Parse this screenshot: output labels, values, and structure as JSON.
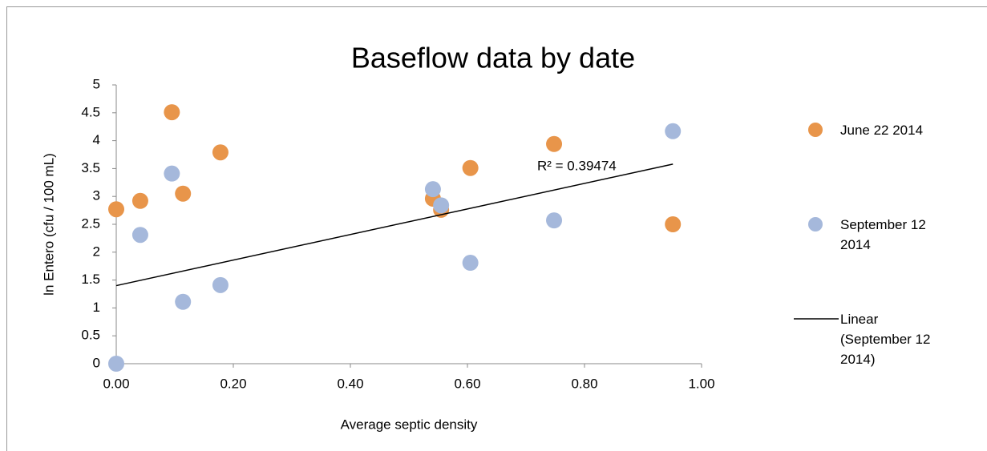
{
  "chart_data": {
    "type": "scatter",
    "title": "Baseflow data by date",
    "x_label": "Average septic density",
    "y_label": "ln Entero (cfu / 100 mL)",
    "xlim": [
      0,
      1
    ],
    "ylim": [
      0,
      5
    ],
    "xticks": [
      {
        "value": 0,
        "label": "0.00"
      },
      {
        "value": 0.2,
        "label": "0.20"
      },
      {
        "value": 0.4,
        "label": "0.40"
      },
      {
        "value": 0.6,
        "label": "0.60"
      },
      {
        "value": 0.8,
        "label": "0.80"
      },
      {
        "value": 1,
        "label": "1.00"
      }
    ],
    "yticks": [
      0,
      0.5,
      1,
      1.5,
      2,
      2.5,
      3,
      3.5,
      4,
      4.5,
      5
    ],
    "grid": false,
    "series": [
      {
        "name": "June 22 2014",
        "color": "#e8954a",
        "x": [
          0.0,
          0.041,
          0.095,
          0.114,
          0.178,
          0.541,
          0.555,
          0.605,
          0.748,
          0.951
        ],
        "values": [
          2.77,
          2.92,
          4.51,
          3.05,
          3.79,
          2.96,
          2.76,
          3.51,
          3.94,
          2.5
        ]
      },
      {
        "name": "September 12 2014",
        "color": "#a5b8db",
        "x": [
          0.0,
          0.041,
          0.095,
          0.114,
          0.178,
          0.541,
          0.555,
          0.605,
          0.748,
          0.951
        ],
        "values": [
          0.0,
          2.31,
          3.41,
          1.11,
          1.41,
          3.13,
          2.84,
          1.81,
          2.57,
          4.17
        ]
      }
    ],
    "trendline": {
      "name": "Linear (September 12 2014)",
      "color": "#000000",
      "x": [
        0,
        0.951
      ],
      "values": [
        1.4,
        3.58
      ],
      "label": "R² = 0.39474"
    }
  }
}
